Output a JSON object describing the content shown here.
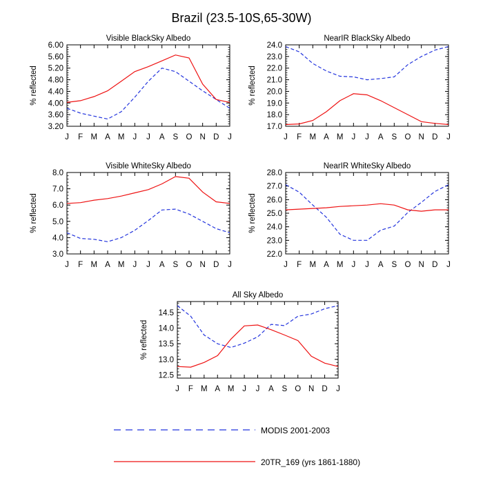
{
  "title": "Brazil (23.5-10S,65-30W)",
  "months": [
    "J",
    "F",
    "M",
    "A",
    "M",
    "J",
    "J",
    "A",
    "S",
    "O",
    "N",
    "D",
    "J"
  ],
  "legend": {
    "modis": "MODIS 2001-2003",
    "model": "20TR_169 (yrs 1861-1880)"
  },
  "colors": {
    "modis": "#2233dd",
    "model": "#ee1111"
  },
  "chart_data": [
    {
      "type": "line",
      "title": "Visible BlackSky Albedo",
      "ylabel": "% reflected",
      "ylim": [
        3.2,
        6.0
      ],
      "yticks": [
        3.2,
        3.6,
        4.0,
        4.4,
        4.8,
        5.2,
        5.6,
        6.0
      ],
      "ytick_labels": [
        "3.20",
        "3.60",
        "4.00",
        "4.40",
        "4.80",
        "5.20",
        "5.60",
        "6.00"
      ],
      "series": [
        {
          "name": "MODIS 2001-2003",
          "values": [
            3.82,
            3.65,
            3.55,
            3.45,
            3.7,
            4.2,
            4.75,
            5.2,
            5.08,
            4.75,
            4.42,
            4.12,
            3.82
          ]
        },
        {
          "name": "20TR_169 (yrs 1861-1880)",
          "values": [
            4.02,
            4.08,
            4.22,
            4.42,
            4.75,
            5.08,
            5.25,
            5.45,
            5.65,
            5.55,
            4.65,
            4.12,
            4.02
          ]
        }
      ]
    },
    {
      "type": "line",
      "title": "NearIR BlackSky Albedo",
      "ylabel": "% reflected",
      "ylim": [
        17.0,
        24.0
      ],
      "yticks": [
        17,
        18,
        19,
        20,
        21,
        22,
        23,
        24
      ],
      "ytick_labels": [
        "17.0",
        "18.0",
        "19.0",
        "20.0",
        "21.0",
        "22.0",
        "23.0",
        "24.0"
      ],
      "series": [
        {
          "name": "MODIS 2001-2003",
          "values": [
            23.85,
            23.4,
            22.4,
            21.75,
            21.3,
            21.25,
            21.0,
            21.1,
            21.25,
            22.3,
            23.0,
            23.55,
            23.85
          ]
        },
        {
          "name": "20TR_169 (yrs 1861-1880)",
          "values": [
            17.15,
            17.2,
            17.5,
            18.25,
            19.2,
            19.8,
            19.7,
            19.2,
            18.6,
            18.0,
            17.4,
            17.25,
            17.15
          ]
        }
      ]
    },
    {
      "type": "line",
      "title": "Visible WhiteSky Albedo",
      "ylabel": "% reflected",
      "ylim": [
        3.0,
        8.0
      ],
      "yticks": [
        3,
        4,
        5,
        6,
        7,
        8
      ],
      "ytick_labels": [
        "3.0",
        "4.0",
        "5.0",
        "6.0",
        "7.0",
        "8.0"
      ],
      "series": [
        {
          "name": "MODIS 2001-2003",
          "values": [
            4.3,
            3.95,
            3.9,
            3.75,
            4.0,
            4.45,
            5.05,
            5.7,
            5.75,
            5.45,
            5.0,
            4.55,
            4.3
          ]
        },
        {
          "name": "20TR_169 (yrs 1861-1880)",
          "values": [
            6.1,
            6.15,
            6.3,
            6.4,
            6.55,
            6.75,
            6.95,
            7.3,
            7.75,
            7.65,
            6.8,
            6.2,
            6.1
          ]
        }
      ]
    },
    {
      "type": "line",
      "title": "NearIR WhiteSky Albedo",
      "ylabel": "% reflected",
      "ylim": [
        22.0,
        28.0
      ],
      "yticks": [
        22,
        23,
        24,
        25,
        26,
        27,
        28
      ],
      "ytick_labels": [
        "22.0",
        "23.0",
        "24.0",
        "25.0",
        "26.0",
        "27.0",
        "28.0"
      ],
      "series": [
        {
          "name": "MODIS 2001-2003",
          "values": [
            27.1,
            26.55,
            25.6,
            24.7,
            23.45,
            23.0,
            23.0,
            23.75,
            24.05,
            25.05,
            25.8,
            26.6,
            27.1
          ]
        },
        {
          "name": "20TR_169 (yrs 1861-1880)",
          "values": [
            25.25,
            25.3,
            25.35,
            25.4,
            25.5,
            25.55,
            25.6,
            25.7,
            25.6,
            25.25,
            25.15,
            25.25,
            25.25
          ]
        }
      ]
    },
    {
      "type": "line",
      "title": "All Sky Albedo",
      "ylabel": "% reflected",
      "ylim": [
        12.4,
        14.85
      ],
      "yticks": [
        12.5,
        13.0,
        13.5,
        14.0,
        14.5
      ],
      "ytick_labels": [
        "12.5",
        "13.0",
        "13.5",
        "14.0",
        "14.5"
      ],
      "series": [
        {
          "name": "MODIS 2001-2003",
          "values": [
            14.72,
            14.38,
            13.78,
            13.5,
            13.38,
            13.52,
            13.72,
            14.12,
            14.08,
            14.38,
            14.45,
            14.62,
            14.72
          ]
        },
        {
          "name": "20TR_169 (yrs 1861-1880)",
          "values": [
            12.77,
            12.75,
            12.9,
            13.12,
            13.65,
            14.07,
            14.1,
            13.95,
            13.78,
            13.6,
            13.1,
            12.88,
            12.77
          ]
        }
      ]
    }
  ]
}
